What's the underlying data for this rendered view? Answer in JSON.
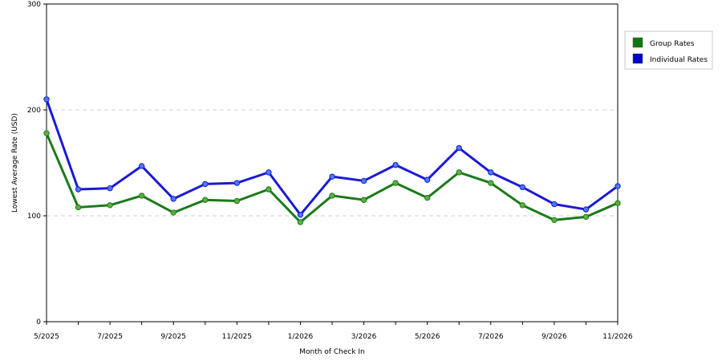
{
  "chart_data": {
    "type": "line",
    "x": [
      "5/2025",
      "6/2025",
      "7/2025",
      "8/2025",
      "9/2025",
      "10/2025",
      "11/2025",
      "12/2025",
      "1/2026",
      "2/2026",
      "3/2026",
      "4/2026",
      "5/2026",
      "6/2026",
      "7/2026",
      "8/2026",
      "9/2026",
      "10/2026",
      "11/2026"
    ],
    "x_tick_labels": [
      "5/2025",
      "7/2025",
      "9/2025",
      "11/2025",
      "1/2026",
      "3/2026",
      "5/2026",
      "7/2026",
      "9/2026",
      "11/2026"
    ],
    "series": [
      {
        "name": "Group Rates",
        "color": "#1a7a1a",
        "legend_color": "#117711",
        "values": [
          178,
          108,
          110,
          119,
          103,
          115,
          114,
          125,
          94,
          119,
          115,
          131,
          117,
          141,
          131,
          110,
          96,
          99,
          112
        ]
      },
      {
        "name": "Individual Rates",
        "color": "#1a1ad6",
        "legend_color": "#0000cc",
        "values": [
          210,
          125,
          126,
          147,
          116,
          130,
          131,
          141,
          101,
          137,
          133,
          148,
          134,
          164,
          141,
          127,
          111,
          106,
          128
        ]
      }
    ],
    "xlabel": "Month of Check In",
    "ylabel": "Lowest Average Rate (USD)",
    "ylim": [
      0,
      300
    ],
    "y_ticks": [
      "0",
      "100",
      "200",
      "300"
    ],
    "grid": "horizontal dashed",
    "legend_position": "top-right"
  }
}
